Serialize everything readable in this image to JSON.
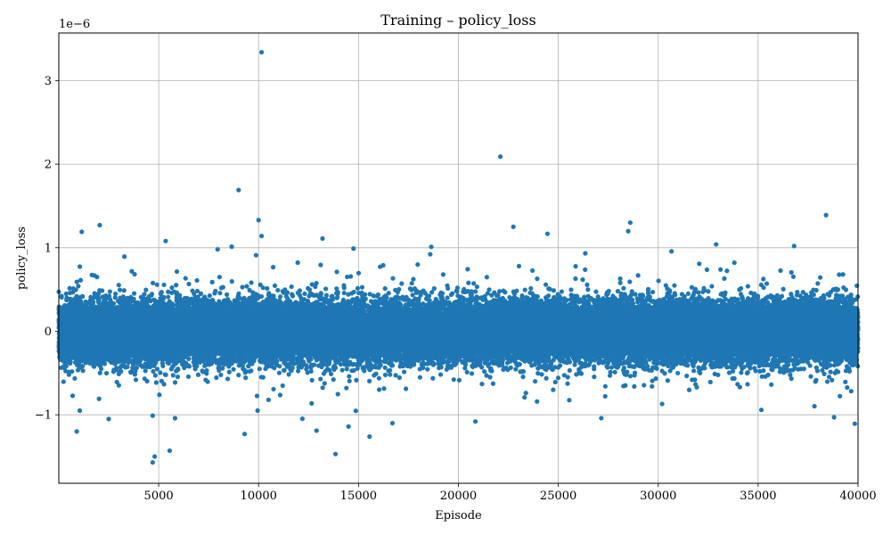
{
  "chart_data": {
    "type": "scatter",
    "title": "Training – policy_loss",
    "xlabel": "Episode",
    "ylabel": "policy_loss",
    "y_scale_label": "1e−6",
    "y_multiplier": 1e-06,
    "xlim": [
      1,
      40000
    ],
    "ylim": [
      -1.82,
      3.57
    ],
    "xticks": [
      5000,
      10000,
      15000,
      20000,
      25000,
      30000,
      35000,
      40000
    ],
    "xtick_labels": [
      "5000",
      "10000",
      "15000",
      "20000",
      "25000",
      "30000",
      "35000",
      "40000"
    ],
    "yticks": [
      -1,
      0,
      1,
      2,
      3
    ],
    "ytick_labels": [
      "−1",
      "0",
      "1",
      "2",
      "3"
    ],
    "grid": true,
    "marker_color": "#1f77b4",
    "series": [
      {
        "name": "policy_loss",
        "n_points": 40000,
        "bulk_std": 0.17,
        "outliers": [
          {
            "x": 10150,
            "y": 3.34
          },
          {
            "x": 22100,
            "y": 2.09
          },
          {
            "x": 9000,
            "y": 1.69
          },
          {
            "x": 10000,
            "y": 1.33
          },
          {
            "x": 28600,
            "y": 1.3
          },
          {
            "x": 38400,
            "y": 1.39
          },
          {
            "x": 22750,
            "y": 1.25
          },
          {
            "x": 2050,
            "y": 1.27
          },
          {
            "x": 1150,
            "y": 1.19
          },
          {
            "x": 10150,
            "y": 1.14
          },
          {
            "x": 13200,
            "y": 1.11
          },
          {
            "x": 5350,
            "y": 1.08
          },
          {
            "x": 32900,
            "y": 1.04
          },
          {
            "x": 36800,
            "y": 1.02
          },
          {
            "x": 14750,
            "y": 0.99
          },
          {
            "x": 7950,
            "y": 0.98
          },
          {
            "x": 900,
            "y": -1.2
          },
          {
            "x": 9300,
            "y": -1.23
          },
          {
            "x": 12900,
            "y": -1.19
          },
          {
            "x": 14500,
            "y": -1.14
          },
          {
            "x": 4700,
            "y": -1.57
          },
          {
            "x": 5550,
            "y": -1.43
          },
          {
            "x": 13850,
            "y": -1.47
          },
          {
            "x": 4800,
            "y": -1.5
          },
          {
            "x": 4700,
            "y": -1.01
          },
          {
            "x": 20850,
            "y": -1.08
          },
          {
            "x": 27150,
            "y": -1.04
          },
          {
            "x": 38800,
            "y": -1.03
          },
          {
            "x": 16700,
            "y": -1.1
          },
          {
            "x": 2500,
            "y": -1.05
          },
          {
            "x": 1050,
            "y": -0.95
          },
          {
            "x": 9950,
            "y": -0.95
          }
        ]
      }
    ]
  }
}
